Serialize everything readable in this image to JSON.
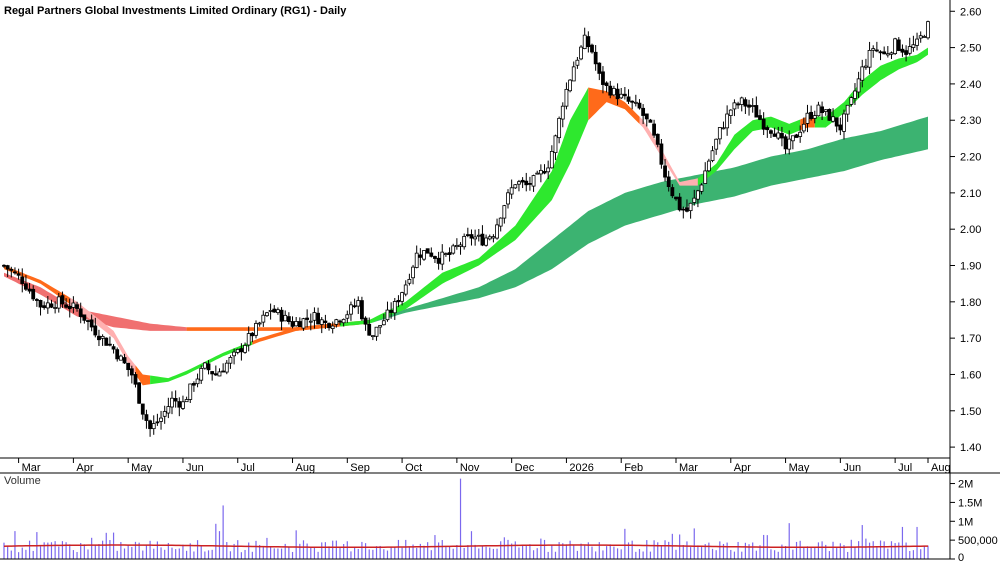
{
  "chart_data": [
    {
      "type": "candlestick",
      "title": "Regal Partners Global Investments Limited Ordinary (RG1) - Daily",
      "y_axis": {
        "ticks": [
          "2.60",
          "2.50",
          "2.40",
          "2.30",
          "2.20",
          "2.10",
          "2.00",
          "1.90",
          "1.80",
          "1.70",
          "1.60",
          "1.50",
          "1.40"
        ],
        "min": 1.37,
        "max": 2.62,
        "position": "right"
      },
      "x_axis": {
        "labels": [
          "Mar",
          "Apr",
          "May",
          "Jun",
          "Jul",
          "Aug",
          "Sep",
          "Oct",
          "Nov",
          "Dec",
          "2026",
          "Feb",
          "Mar",
          "Apr",
          "May",
          "Jun",
          "Jul",
          "Aug"
        ]
      },
      "price_path": [
        [
          0,
          1.9
        ],
        [
          5,
          1.86
        ],
        [
          10,
          1.79
        ],
        [
          15,
          1.8
        ],
        [
          20,
          1.78
        ],
        [
          25,
          1.72
        ],
        [
          30,
          1.67
        ],
        [
          35,
          1.6
        ],
        [
          38,
          1.5
        ],
        [
          40,
          1.45
        ],
        [
          43,
          1.48
        ],
        [
          46,
          1.53
        ],
        [
          49,
          1.52
        ],
        [
          52,
          1.58
        ],
        [
          55,
          1.62
        ],
        [
          58,
          1.6
        ],
        [
          61,
          1.63
        ],
        [
          64,
          1.66
        ],
        [
          67,
          1.7
        ],
        [
          70,
          1.74
        ],
        [
          73,
          1.78
        ],
        [
          76,
          1.76
        ],
        [
          79,
          1.74
        ],
        [
          82,
          1.75
        ],
        [
          85,
          1.76
        ],
        [
          88,
          1.74
        ],
        [
          91,
          1.75
        ],
        [
          94,
          1.77
        ],
        [
          97,
          1.8
        ],
        [
          99,
          1.73
        ],
        [
          101,
          1.71
        ],
        [
          104,
          1.75
        ],
        [
          107,
          1.79
        ],
        [
          110,
          1.85
        ],
        [
          113,
          1.93
        ],
        [
          116,
          1.94
        ],
        [
          119,
          1.92
        ],
        [
          122,
          1.93
        ],
        [
          125,
          1.96
        ],
        [
          128,
          1.98
        ],
        [
          131,
          1.97
        ],
        [
          134,
          1.99
        ],
        [
          137,
          2.07
        ],
        [
          140,
          2.13
        ],
        [
          143,
          2.12
        ],
        [
          146,
          2.14
        ],
        [
          149,
          2.18
        ],
        [
          151,
          2.25
        ],
        [
          153,
          2.35
        ],
        [
          156,
          2.45
        ],
        [
          159,
          2.52
        ],
        [
          161,
          2.49
        ],
        [
          163,
          2.42
        ],
        [
          165,
          2.39
        ],
        [
          168,
          2.37
        ],
        [
          171,
          2.35
        ],
        [
          174,
          2.33
        ],
        [
          177,
          2.28
        ],
        [
          179,
          2.22
        ],
        [
          181,
          2.15
        ],
        [
          183,
          2.1
        ],
        [
          185,
          2.06
        ],
        [
          187,
          2.05
        ],
        [
          189,
          2.08
        ],
        [
          191,
          2.13
        ],
        [
          193,
          2.19
        ],
        [
          196,
          2.27
        ],
        [
          199,
          2.33
        ],
        [
          202,
          2.35
        ],
        [
          205,
          2.33
        ],
        [
          208,
          2.29
        ],
        [
          211,
          2.27
        ],
        [
          214,
          2.22
        ],
        [
          217,
          2.26
        ],
        [
          220,
          2.31
        ],
        [
          223,
          2.33
        ],
        [
          226,
          2.31
        ],
        [
          229,
          2.28
        ],
        [
          232,
          2.35
        ],
        [
          235,
          2.44
        ],
        [
          238,
          2.5
        ],
        [
          241,
          2.48
        ],
        [
          244,
          2.51
        ],
        [
          247,
          2.49
        ],
        [
          250,
          2.51
        ],
        [
          253,
          2.56
        ]
      ],
      "trend_ribbons": [
        {
          "name": "short-term",
          "up_color": "#2ee82e",
          "down_color": "#ff6a1a",
          "weak_color": "#ffb0b0",
          "upper": [
            [
              0,
              1.9
            ],
            [
              10,
              1.86
            ],
            [
              20,
              1.8
            ],
            [
              30,
              1.72
            ],
            [
              34,
              1.65
            ],
            [
              38,
              1.6
            ],
            [
              45,
              1.59
            ],
            [
              50,
              1.61
            ],
            [
              60,
              1.66
            ],
            [
              70,
              1.7
            ],
            [
              80,
              1.73
            ],
            [
              90,
              1.74
            ],
            [
              100,
              1.75
            ],
            [
              110,
              1.8
            ],
            [
              120,
              1.88
            ],
            [
              130,
              1.92
            ],
            [
              140,
              2.01
            ],
            [
              150,
              2.16
            ],
            [
              155,
              2.3
            ],
            [
              160,
              2.39
            ],
            [
              165,
              2.38
            ],
            [
              170,
              2.35
            ],
            [
              175,
              2.3
            ],
            [
              180,
              2.22
            ],
            [
              185,
              2.13
            ],
            [
              190,
              2.14
            ],
            [
              195,
              2.18
            ],
            [
              200,
              2.26
            ],
            [
              205,
              2.3
            ],
            [
              210,
              2.31
            ],
            [
              215,
              2.29
            ],
            [
              220,
              2.31
            ],
            [
              225,
              2.31
            ],
            [
              230,
              2.35
            ],
            [
              235,
              2.41
            ],
            [
              240,
              2.45
            ],
            [
              245,
              2.47
            ],
            [
              250,
              2.48
            ],
            [
              253,
              2.5
            ]
          ],
          "lower": [
            [
              0,
              1.89
            ],
            [
              10,
              1.85
            ],
            [
              20,
              1.78
            ],
            [
              30,
              1.7
            ],
            [
              34,
              1.63
            ],
            [
              38,
              1.57
            ],
            [
              45,
              1.58
            ],
            [
              50,
              1.6
            ],
            [
              60,
              1.65
            ],
            [
              70,
              1.69
            ],
            [
              80,
              1.72
            ],
            [
              90,
              1.73
            ],
            [
              100,
              1.74
            ],
            [
              110,
              1.78
            ],
            [
              120,
              1.85
            ],
            [
              130,
              1.9
            ],
            [
              140,
              1.97
            ],
            [
              150,
              2.08
            ],
            [
              155,
              2.18
            ],
            [
              160,
              2.3
            ],
            [
              165,
              2.35
            ],
            [
              170,
              2.33
            ],
            [
              175,
              2.28
            ],
            [
              180,
              2.2
            ],
            [
              185,
              2.12
            ],
            [
              190,
              2.12
            ],
            [
              195,
              2.16
            ],
            [
              200,
              2.22
            ],
            [
              205,
              2.27
            ],
            [
              210,
              2.28
            ],
            [
              215,
              2.26
            ],
            [
              220,
              2.28
            ],
            [
              225,
              2.28
            ],
            [
              230,
              2.32
            ],
            [
              235,
              2.37
            ],
            [
              240,
              2.41
            ],
            [
              245,
              2.44
            ],
            [
              250,
              2.46
            ],
            [
              253,
              2.48
            ]
          ],
          "colors_by_segment": [
            [
              0,
              18,
              "down"
            ],
            [
              18,
              36,
              "weak"
            ],
            [
              36,
              40,
              "down"
            ],
            [
              40,
              68,
              "up"
            ],
            [
              68,
              92,
              "down"
            ],
            [
              92,
              112,
              "up"
            ],
            [
              112,
              160,
              "up"
            ],
            [
              160,
              174,
              "down"
            ],
            [
              174,
              190,
              "weak"
            ],
            [
              190,
              218,
              "up"
            ],
            [
              218,
              222,
              "down"
            ],
            [
              222,
              253,
              "up"
            ]
          ]
        },
        {
          "name": "long-term",
          "up_color": "#3cb371",
          "down_color": "#f07070",
          "weak_color": "#ff6a1a",
          "upper": [
            [
              0,
              1.88
            ],
            [
              10,
              1.84
            ],
            [
              20,
              1.78
            ],
            [
              30,
              1.76
            ],
            [
              40,
              1.74
            ],
            [
              50,
              1.73
            ],
            [
              60,
              1.73
            ],
            [
              70,
              1.73
            ],
            [
              80,
              1.73
            ],
            [
              90,
              1.74
            ],
            [
              100,
              1.75
            ],
            [
              110,
              1.78
            ],
            [
              120,
              1.81
            ],
            [
              130,
              1.84
            ],
            [
              140,
              1.89
            ],
            [
              150,
              1.97
            ],
            [
              160,
              2.05
            ],
            [
              170,
              2.1
            ],
            [
              180,
              2.13
            ],
            [
              190,
              2.15
            ],
            [
              200,
              2.17
            ],
            [
              210,
              2.2
            ],
            [
              220,
              2.22
            ],
            [
              230,
              2.25
            ],
            [
              240,
              2.27
            ],
            [
              253,
              2.31
            ]
          ],
          "lower": [
            [
              0,
              1.87
            ],
            [
              10,
              1.82
            ],
            [
              20,
              1.76
            ],
            [
              30,
              1.73
            ],
            [
              40,
              1.72
            ],
            [
              50,
              1.72
            ],
            [
              60,
              1.72
            ],
            [
              70,
              1.72
            ],
            [
              80,
              1.72
            ],
            [
              90,
              1.73
            ],
            [
              100,
              1.74
            ],
            [
              110,
              1.77
            ],
            [
              120,
              1.79
            ],
            [
              130,
              1.81
            ],
            [
              140,
              1.84
            ],
            [
              150,
              1.89
            ],
            [
              160,
              1.96
            ],
            [
              170,
              2.01
            ],
            [
              180,
              2.04
            ],
            [
              190,
              2.07
            ],
            [
              200,
              2.09
            ],
            [
              210,
              2.12
            ],
            [
              220,
              2.14
            ],
            [
              230,
              2.16
            ],
            [
              240,
              2.19
            ],
            [
              253,
              2.22
            ]
          ],
          "colors_by_segment": [
            [
              0,
              50,
              "down"
            ],
            [
              50,
              100,
              "weak"
            ],
            [
              100,
              253,
              "up"
            ]
          ]
        }
      ]
    },
    {
      "type": "bar",
      "title": "Volume",
      "y_axis": {
        "ticks": [
          "2M",
          "1.5M",
          "1M",
          "500,000",
          "0"
        ],
        "max": 2200000
      },
      "average_line_color": "#cc2222",
      "bar_color": "#7b68ee"
    }
  ]
}
